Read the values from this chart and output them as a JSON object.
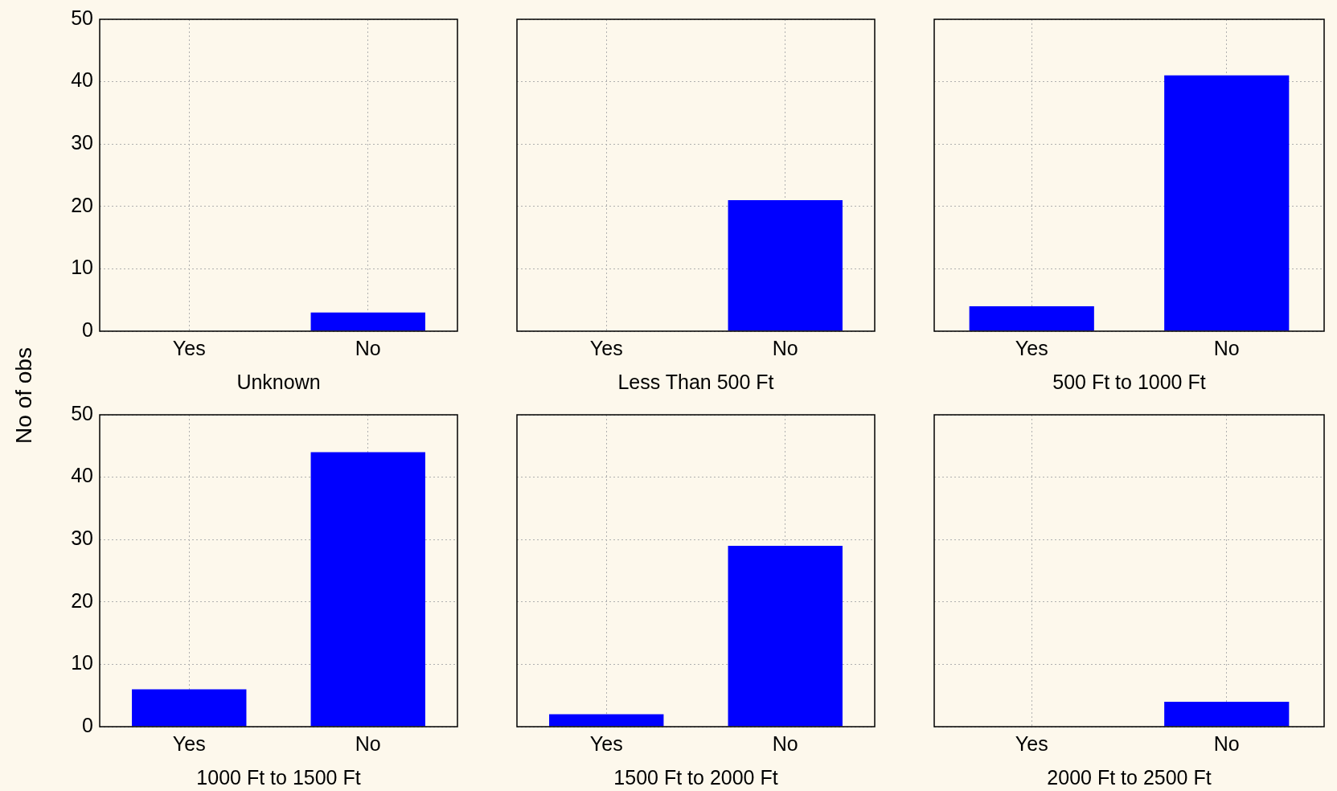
{
  "chart_data": [
    {
      "type": "bar",
      "ylabel": "No of obs",
      "xlabel": "Unknown",
      "categories": [
        "Yes",
        "No"
      ],
      "values": [
        0,
        3
      ],
      "color": "#0000ff",
      "ylim": [
        0,
        50
      ],
      "yticks": [
        0,
        10,
        20,
        30,
        40,
        50
      ],
      "grid": true
    },
    {
      "type": "bar",
      "xlabel": "Less Than 500 Ft",
      "categories": [
        "Yes",
        "No"
      ],
      "values": [
        0,
        21
      ],
      "color": "#0000ff",
      "ylim": [
        0,
        50
      ],
      "yticks": [
        0,
        10,
        20,
        30,
        40,
        50
      ],
      "grid": true,
      "tick_labels": "x"
    },
    {
      "type": "bar",
      "xlabel": "500 Ft to 1000 Ft",
      "categories": [
        "Yes",
        "No"
      ],
      "values": [
        4,
        41
      ],
      "color": "#0000ff",
      "ylim": [
        0,
        50
      ],
      "yticks": [
        0,
        10,
        20,
        30,
        40,
        50
      ],
      "grid": true,
      "tick_labels": "x"
    },
    {
      "type": "bar",
      "xlabel": "1000 Ft to 1500 Ft",
      "categories": [
        "Yes",
        "No"
      ],
      "values": [
        6,
        44
      ],
      "color": "#0000ff",
      "ylim": [
        0,
        50
      ],
      "yticks": [
        0,
        10,
        20,
        30,
        40,
        50
      ],
      "grid": true
    },
    {
      "type": "bar",
      "xlabel": "1500 Ft to 2000 Ft",
      "categories": [
        "Yes",
        "No"
      ],
      "values": [
        2,
        29
      ],
      "color": "#0000ff",
      "ylim": [
        0,
        50
      ],
      "yticks": [
        0,
        10,
        20,
        30,
        40,
        50
      ],
      "grid": true,
      "tick_labels": "x"
    },
    {
      "type": "bar",
      "xlabel": "2000 Ft to 2500 Ft",
      "categories": [
        "Yes",
        "No"
      ],
      "values": [
        0,
        4
      ],
      "color": "#0000ff",
      "ylim": [
        0,
        50
      ],
      "yticks": [
        0,
        10,
        20,
        30,
        40,
        50
      ],
      "grid": true,
      "tick_labels": "x"
    }
  ]
}
